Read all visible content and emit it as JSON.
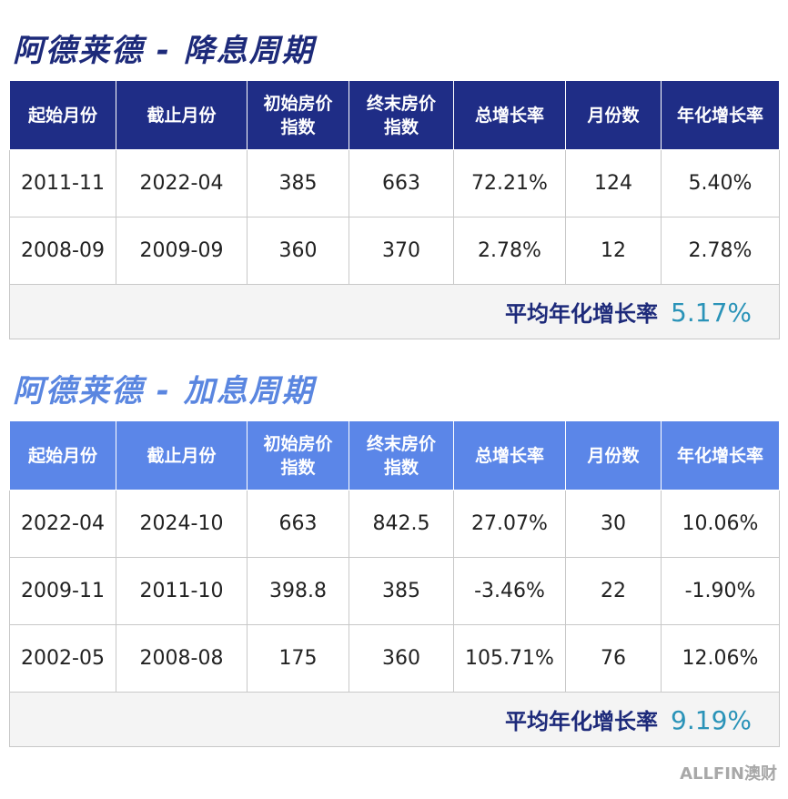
{
  "sections": [
    {
      "title": "阿德莱德 - 降息周期",
      "header": [
        "起始月份",
        "截止月份",
        "初始房价\n指数",
        "终末房价\n指数",
        "总增长率",
        "月份数",
        "年化增长率"
      ],
      "rows": [
        [
          "2011-11",
          "2022-04",
          "385",
          "663",
          "72.21%",
          "124",
          "5.40%"
        ],
        [
          "2008-09",
          "2009-09",
          "360",
          "370",
          "2.78%",
          "12",
          "2.78%"
        ]
      ],
      "footer": {
        "label": "平均年化增长率",
        "value": "5.17%"
      }
    },
    {
      "title": "阿德莱德 - 加息周期",
      "header": [
        "起始月份",
        "截止月份",
        "初始房价\n指数",
        "终末房价\n指数",
        "总增长率",
        "月份数",
        "年化增长率"
      ],
      "rows": [
        [
          "2022-04",
          "2024-10",
          "663",
          "842.5",
          "27.07%",
          "30",
          "10.06%"
        ],
        [
          "2009-11",
          "2011-10",
          "398.8",
          "385",
          "-3.46%",
          "22",
          "-1.90%"
        ],
        [
          "2002-05",
          "2008-08",
          "175",
          "360",
          "105.71%",
          "76",
          "12.06%"
        ]
      ],
      "footer": {
        "label": "平均年化增长率",
        "value": "9.19%"
      }
    }
  ],
  "logo": "ALLFIN澳财"
}
